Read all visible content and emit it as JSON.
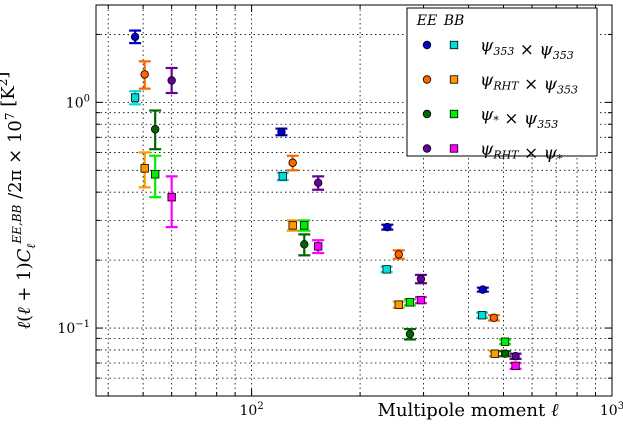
{
  "chart_data": {
    "type": "scatter",
    "xlabel": "Multipole moment ℓ",
    "ylabel": "ℓ(ℓ + 1)C_ℓ^{EE,BB} /2π × 10⁷ [K²]",
    "xscale": "log",
    "yscale": "log",
    "xlim": [
      37,
      1000
    ],
    "ylim": [
      0.05,
      2.7
    ],
    "grid": true,
    "legend_position": "top-right",
    "legend_header": [
      "EE",
      "BB"
    ],
    "x_ticks": [
      {
        "value": 100,
        "label": "10²"
      },
      {
        "value": 1000,
        "label": "10³"
      }
    ],
    "y_ticks": [
      {
        "value": 0.1,
        "label": "10⁻¹"
      },
      {
        "value": 1.0,
        "label": "10⁰"
      }
    ],
    "series": [
      {
        "name": "ψ353 × ψ353",
        "label_base": "ψ",
        "label_sub1": "353",
        "label_mid": " × ψ",
        "label_sub2": "353",
        "ee_color": "#0000cc",
        "bb_color": "#00dddd",
        "ee": [
          {
            "x": 47.5,
            "y": 1.95,
            "lo": 1.83,
            "hi": 2.08
          },
          {
            "x": 121,
            "y": 0.74,
            "lo": 0.715,
            "hi": 0.765
          },
          {
            "x": 238,
            "y": 0.28,
            "lo": 0.273,
            "hi": 0.287
          },
          {
            "x": 438,
            "y": 0.148,
            "lo": 0.145,
            "hi": 0.151
          }
        ],
        "bb": [
          {
            "x": 47.5,
            "y": 1.05,
            "lo": 0.98,
            "hi": 1.12
          },
          {
            "x": 122,
            "y": 0.47,
            "lo": 0.452,
            "hi": 0.488
          },
          {
            "x": 237,
            "y": 0.182,
            "lo": 0.177,
            "hi": 0.187
          },
          {
            "x": 436,
            "y": 0.114,
            "lo": 0.111,
            "hi": 0.117
          }
        ]
      },
      {
        "name": "ψRHT × ψ353",
        "label_base": "ψ",
        "label_sub1": "RHT",
        "label_mid": " × ψ",
        "label_sub2": "353",
        "ee_color": "#ff6600",
        "bb_color": "#ff9900",
        "ee": [
          {
            "x": 50.5,
            "y": 1.33,
            "lo": 1.15,
            "hi": 1.52
          },
          {
            "x": 130,
            "y": 0.54,
            "lo": 0.5,
            "hi": 0.58
          },
          {
            "x": 256,
            "y": 0.212,
            "lo": 0.203,
            "hi": 0.221
          },
          {
            "x": 470,
            "y": 0.111,
            "lo": 0.108,
            "hi": 0.114
          }
        ],
        "bb": [
          {
            "x": 50.5,
            "y": 0.51,
            "lo": 0.42,
            "hi": 0.6
          },
          {
            "x": 130,
            "y": 0.285,
            "lo": 0.27,
            "hi": 0.3
          },
          {
            "x": 256,
            "y": 0.127,
            "lo": 0.123,
            "hi": 0.131
          },
          {
            "x": 473,
            "y": 0.077,
            "lo": 0.075,
            "hi": 0.079
          }
        ]
      },
      {
        "name": "ψ* × ψ353",
        "label_base": "ψ",
        "label_sub1": "*",
        "label_mid": " × ψ",
        "label_sub2": "353",
        "ee_color": "#006600",
        "bb_color": "#00ee00",
        "ee": [
          {
            "x": 54,
            "y": 0.76,
            "lo": 0.62,
            "hi": 0.92
          },
          {
            "x": 140,
            "y": 0.235,
            "lo": 0.21,
            "hi": 0.26
          },
          {
            "x": 275,
            "y": 0.094,
            "lo": 0.089,
            "hi": 0.099
          },
          {
            "x": 505,
            "y": 0.077,
            "lo": 0.075,
            "hi": 0.079
          }
        ],
        "bb": [
          {
            "x": 54,
            "y": 0.48,
            "lo": 0.38,
            "hi": 0.58
          },
          {
            "x": 140,
            "y": 0.285,
            "lo": 0.27,
            "hi": 0.3
          },
          {
            "x": 275,
            "y": 0.13,
            "lo": 0.126,
            "hi": 0.134
          },
          {
            "x": 505,
            "y": 0.087,
            "lo": 0.085,
            "hi": 0.089
          }
        ]
      },
      {
        "name": "ψRHT × ψ*",
        "label_base": "ψ",
        "label_sub1": "RHT",
        "label_mid": " × ψ",
        "label_sub2": "*",
        "ee_color": "#660099",
        "bb_color": "#ff00ff",
        "ee": [
          {
            "x": 60,
            "y": 1.25,
            "lo": 1.1,
            "hi": 1.42
          },
          {
            "x": 153,
            "y": 0.44,
            "lo": 0.41,
            "hi": 0.47
          },
          {
            "x": 295,
            "y": 0.165,
            "lo": 0.158,
            "hi": 0.172
          },
          {
            "x": 540,
            "y": 0.075,
            "lo": 0.073,
            "hi": 0.077
          }
        ],
        "bb": [
          {
            "x": 60,
            "y": 0.38,
            "lo": 0.28,
            "hi": 0.47
          },
          {
            "x": 153,
            "y": 0.23,
            "lo": 0.215,
            "hi": 0.245
          },
          {
            "x": 295,
            "y": 0.133,
            "lo": 0.129,
            "hi": 0.137
          },
          {
            "x": 540,
            "y": 0.068,
            "lo": 0.066,
            "hi": 0.07
          }
        ]
      }
    ]
  }
}
